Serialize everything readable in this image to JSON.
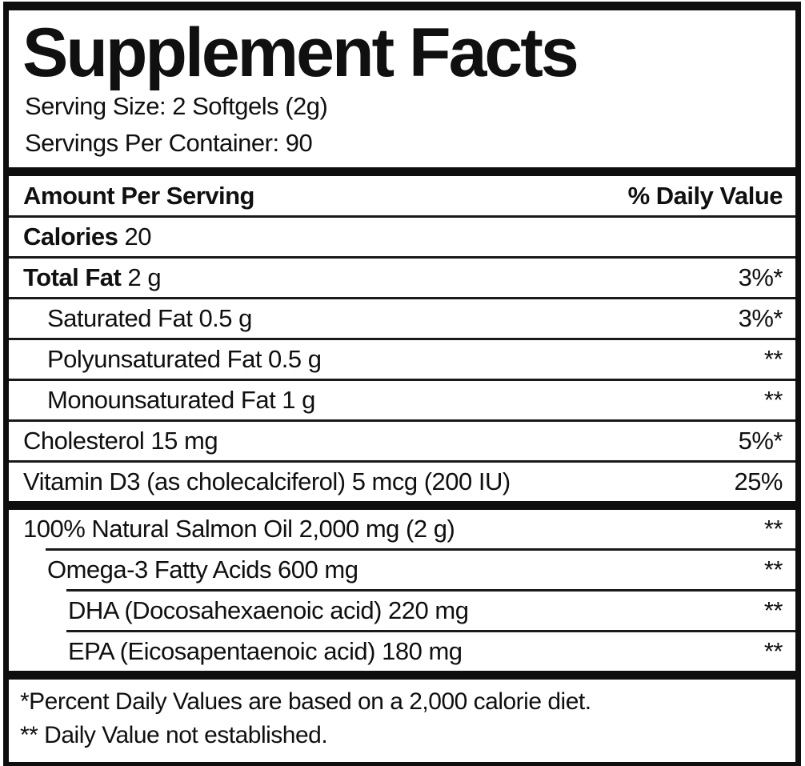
{
  "label": {
    "title": "Supplement Facts",
    "serving_size": "Serving Size: 2 Softgels (2g)",
    "servings_per_container": "Servings Per Container: 90",
    "columns": {
      "left": "Amount Per Serving",
      "right": "% Daily Value"
    },
    "sections": [
      {
        "rows": [
          {
            "bold": "Calories",
            "text": "20",
            "dv": "",
            "indent": 0,
            "divider": null
          },
          {
            "bold": "Total Fat",
            "text": "2 g",
            "dv": "3%*",
            "indent": 0,
            "divider": 0
          },
          {
            "bold": "",
            "text": "Saturated Fat 0.5 g",
            "dv": "3%*",
            "indent": 1,
            "divider": 0
          },
          {
            "bold": "",
            "text": "Polyunsaturated Fat 0.5 g",
            "dv": "**",
            "indent": 1,
            "divider": 0
          },
          {
            "bold": "",
            "text": "Monounsaturated Fat 1 g",
            "dv": "**",
            "indent": 1,
            "divider": 0
          },
          {
            "bold": "",
            "text": "Cholesterol 15 mg",
            "dv": "5%*",
            "indent": 0,
            "divider": 0
          },
          {
            "bold": "",
            "text": "Vitamin D3 (as cholecalciferol) 5 mcg (200 IU)",
            "dv": "25%",
            "indent": 0,
            "divider": 0
          }
        ]
      },
      {
        "rows": [
          {
            "bold": "",
            "text": "100% Natural Salmon Oil 2,000 mg (2 g)",
            "dv": "**",
            "indent": 0,
            "divider": null
          },
          {
            "bold": "",
            "text": "Omega-3 Fatty Acids 600 mg",
            "dv": "**",
            "indent": 1,
            "divider": 1
          },
          {
            "bold": "",
            "text": "DHA (Docosahexaenoic acid) 220 mg",
            "dv": "**",
            "indent": 2,
            "divider": 2
          },
          {
            "bold": "",
            "text": "EPA (Eicosapentaenoic acid) 180 mg",
            "dv": "**",
            "indent": 2,
            "divider": 2
          }
        ]
      }
    ],
    "footnotes": [
      "*Percent Daily Values are based on a 2,000 calorie diet.",
      "** Daily Value not established."
    ],
    "colors": {
      "ink": "#0e0e0e",
      "background": "#ffffff"
    }
  }
}
